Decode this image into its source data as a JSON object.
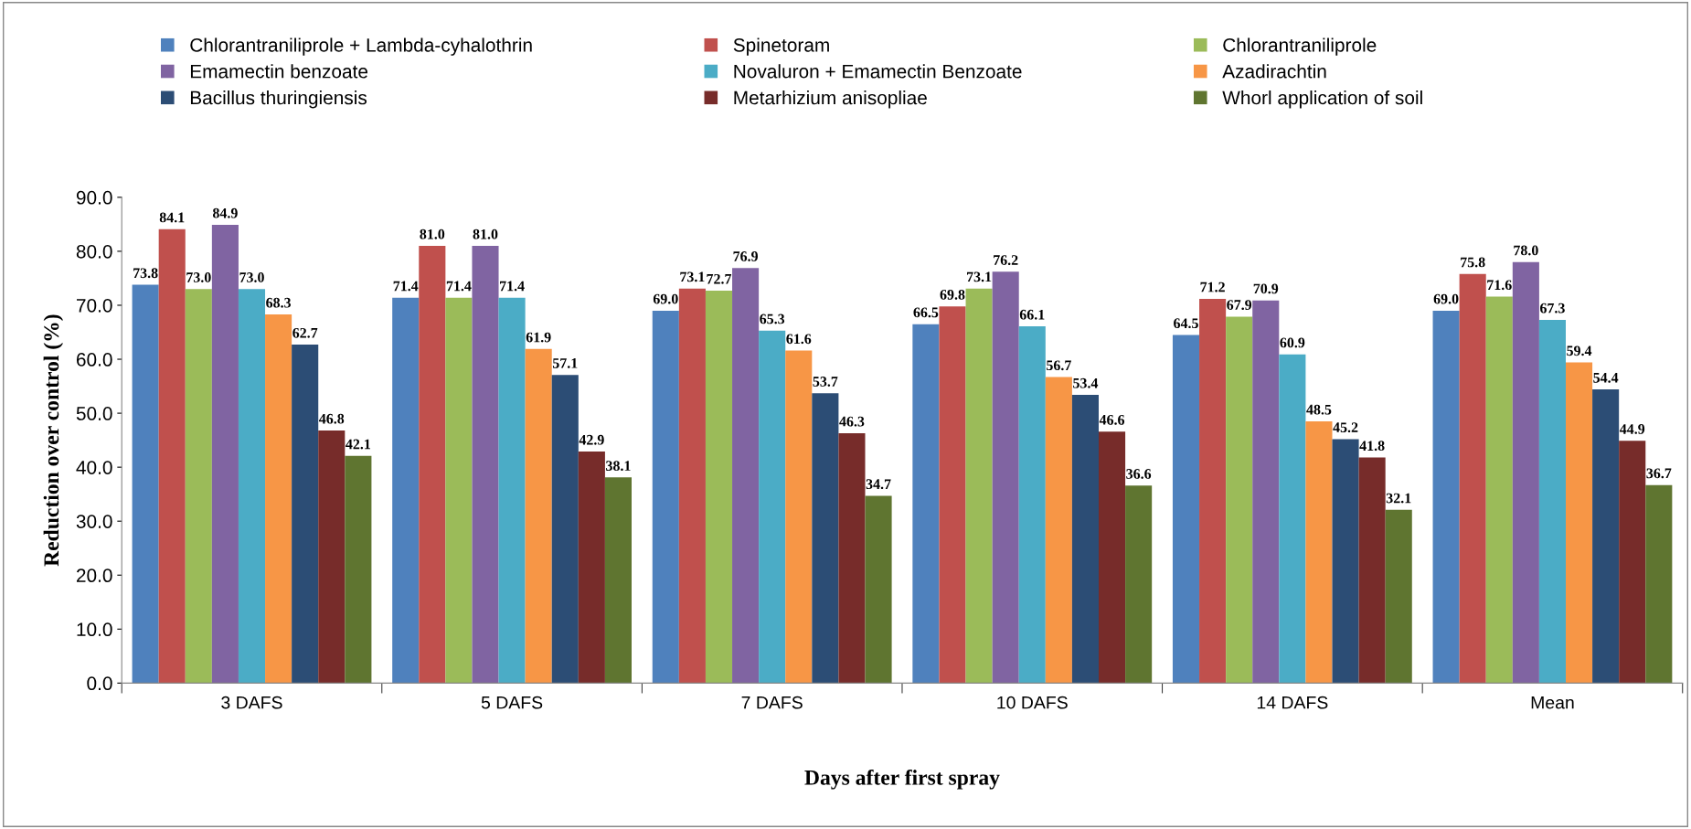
{
  "chart_data": {
    "type": "bar",
    "xlabel": "Days after first spray",
    "ylabel": "Reduction over control (%)",
    "categories": [
      "3 DAFS",
      "5 DAFS",
      "7 DAFS",
      "10 DAFS",
      "14 DAFS",
      "Mean"
    ],
    "ylim": [
      0,
      90
    ],
    "yticks": [
      {
        "value": 0,
        "label": "0.0"
      },
      {
        "value": 10,
        "label": "10.0"
      },
      {
        "value": 20,
        "label": "20.0"
      },
      {
        "value": 30,
        "label": "30.0"
      },
      {
        "value": 40,
        "label": "40.0"
      },
      {
        "value": 50,
        "label": "50.0"
      },
      {
        "value": 60,
        "label": "60.0"
      },
      {
        "value": 70,
        "label": "70.0"
      },
      {
        "value": 80,
        "label": "80.0"
      },
      {
        "value": 90,
        "label": "90.0"
      }
    ],
    "grid": false,
    "legend": "top",
    "series": [
      {
        "name": "Chlorantraniliprole + Lambda-cyhalothrin",
        "color": "#4f81bd",
        "values": [
          73.8,
          71.4,
          69.0,
          66.5,
          64.5,
          69.0
        ],
        "value_labels": [
          "73.8",
          "71.4",
          "69.0",
          "66.5",
          "64.5",
          "69.0"
        ]
      },
      {
        "name": "Spinetoram",
        "color": "#c0504d",
        "values": [
          84.1,
          81.0,
          73.1,
          69.8,
          71.2,
          75.8
        ],
        "value_labels": [
          "84.1",
          "81.0",
          "73.1",
          "69.8",
          "71.2",
          "75.8"
        ]
      },
      {
        "name": "Chlorantraniliprole",
        "color": "#9bbb59",
        "values": [
          73.0,
          71.4,
          72.7,
          73.1,
          67.9,
          71.6
        ],
        "value_labels": [
          "73.0",
          "71.4",
          "72.7",
          "73.1",
          "67.9",
          "71.6"
        ]
      },
      {
        "name": "Emamectin benzoate",
        "color": "#8064a2",
        "values": [
          84.9,
          81.0,
          76.9,
          76.2,
          70.9,
          78.0
        ],
        "value_labels": [
          "84.9",
          "81.0",
          "76.9",
          "76.2",
          "70.9",
          "78.0"
        ]
      },
      {
        "name": "Novaluron + Emamectin Benzoate",
        "color": "#4bacc6",
        "values": [
          73.0,
          71.4,
          65.3,
          66.1,
          60.9,
          67.3
        ],
        "value_labels": [
          "73.0",
          "71.4",
          "65.3",
          "66.1",
          "60.9",
          "67.3"
        ]
      },
      {
        "name": "Azadirachtin",
        "color": "#f79646",
        "values": [
          68.3,
          61.9,
          61.6,
          56.7,
          48.5,
          59.4
        ],
        "value_labels": [
          "68.3",
          "61.9",
          "61.6",
          "56.7",
          "48.5",
          "59.4"
        ]
      },
      {
        "name": "Bacillus thuringiensis",
        "color": "#2c4d75",
        "values": [
          62.7,
          57.1,
          53.7,
          53.4,
          45.2,
          54.4
        ],
        "value_labels": [
          "62.7",
          "57.1",
          "53.7",
          "53.4",
          "45.2",
          "54.4"
        ]
      },
      {
        "name": "Metarhizium anisopliae",
        "color": "#772c2a",
        "values": [
          46.8,
          42.9,
          46.3,
          46.6,
          41.8,
          44.9
        ],
        "value_labels": [
          "46.8",
          "42.9",
          "46.3",
          "46.6",
          "41.8",
          "44.9"
        ]
      },
      {
        "name": "Whorl application of soil",
        "color": "#5f7530",
        "values": [
          42.1,
          38.1,
          34.7,
          36.6,
          32.1,
          36.7
        ],
        "value_labels": [
          "42.1",
          "38.1",
          "34.7",
          "36.6",
          "32.1",
          "36.7"
        ]
      }
    ]
  }
}
